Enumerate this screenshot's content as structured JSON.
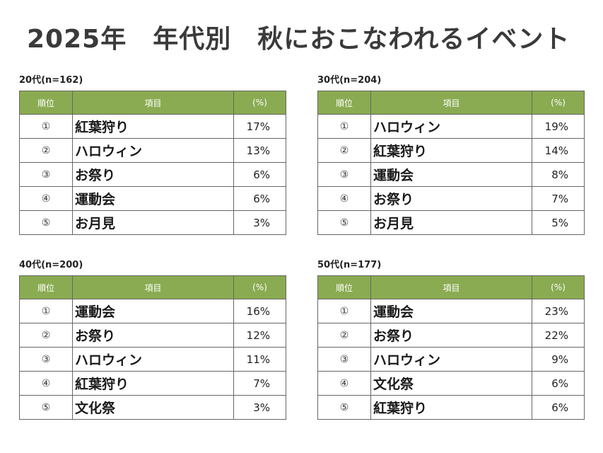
{
  "title": "2025年　年代別　秋におこなわれるイベント",
  "headers": {
    "rank": "順位",
    "item": "項目",
    "pct": "(%)"
  },
  "tables": [
    {
      "label": "20代(n=162)",
      "rows": [
        {
          "rank": "①",
          "item": "紅葉狩り",
          "pct": "17%"
        },
        {
          "rank": "②",
          "item": "ハロウィン",
          "pct": "13%"
        },
        {
          "rank": "③",
          "item": "お祭り",
          "pct": "6%"
        },
        {
          "rank": "④",
          "item": "運動会",
          "pct": "6%"
        },
        {
          "rank": "⑤",
          "item": "お月見",
          "pct": "3%"
        }
      ]
    },
    {
      "label": "30代(n=204)",
      "rows": [
        {
          "rank": "①",
          "item": "ハロウィン",
          "pct": "19%"
        },
        {
          "rank": "②",
          "item": "紅葉狩り",
          "pct": "14%"
        },
        {
          "rank": "③",
          "item": "運動会",
          "pct": "8%"
        },
        {
          "rank": "④",
          "item": "お祭り",
          "pct": "7%"
        },
        {
          "rank": "⑤",
          "item": "お月見",
          "pct": "5%"
        }
      ]
    },
    {
      "label": "40代(n=200)",
      "rows": [
        {
          "rank": "①",
          "item": "運動会",
          "pct": "16%"
        },
        {
          "rank": "②",
          "item": "お祭り",
          "pct": "12%"
        },
        {
          "rank": "③",
          "item": "ハロウィン",
          "pct": "11%"
        },
        {
          "rank": "④",
          "item": "紅葉狩り",
          "pct": "7%"
        },
        {
          "rank": "⑤",
          "item": "文化祭",
          "pct": "3%"
        }
      ]
    },
    {
      "label": "50代(n=177)",
      "rows": [
        {
          "rank": "①",
          "item": "運動会",
          "pct": "23%"
        },
        {
          "rank": "②",
          "item": "お祭り",
          "pct": "22%"
        },
        {
          "rank": "③",
          "item": "ハロウィン",
          "pct": "9%"
        },
        {
          "rank": "④",
          "item": "文化祭",
          "pct": "6%"
        },
        {
          "rank": "⑤",
          "item": "紅葉狩り",
          "pct": "6%"
        }
      ]
    }
  ],
  "colors": {
    "header_bg": "#8aab51",
    "header_text": "#ffffff",
    "border": "#666666"
  }
}
